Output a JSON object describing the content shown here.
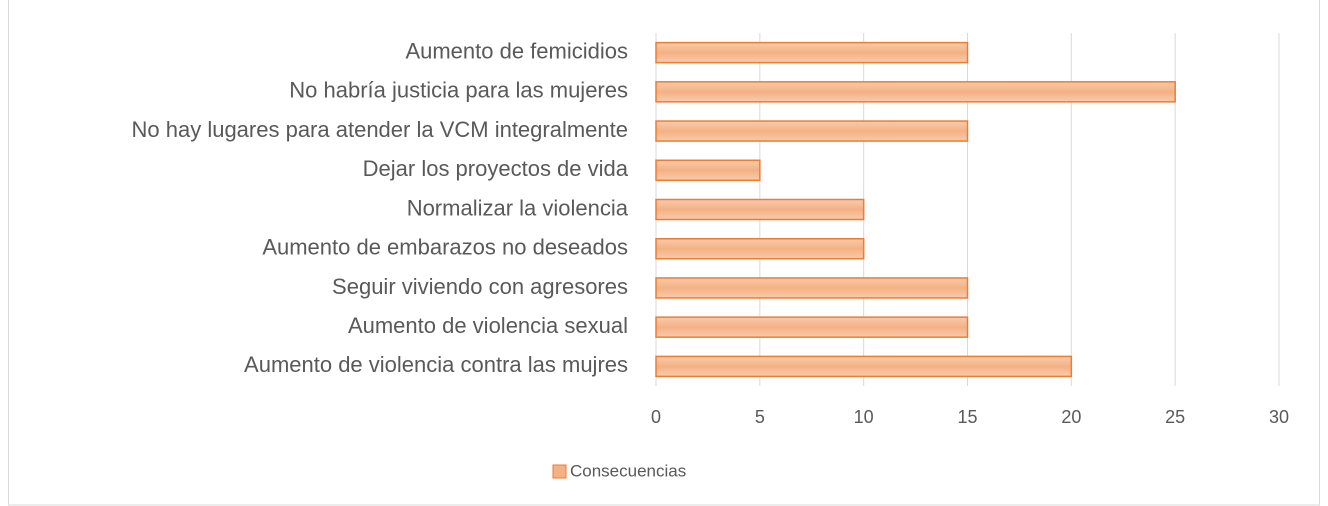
{
  "chart_data": {
    "type": "hbar",
    "categories": [
      "Aumento de femicidios",
      "No habría justicia para las mujeres",
      "No hay lugares para atender la VCM integralmente",
      "Dejar los proyectos de vida",
      "Normalizar la violencia",
      "Aumento de embarazos no deseados",
      "Seguir viviendo con agresores",
      "Aumento de violencia sexual",
      "Aumento de violencia contra las mujres"
    ],
    "series": [
      {
        "name": "Consecuencias",
        "color": "#f4b183",
        "values": [
          15,
          25,
          15,
          5,
          10,
          10,
          15,
          15,
          20
        ]
      }
    ],
    "xlim": [
      0,
      30
    ],
    "xticks": [
      0,
      5,
      10,
      15,
      20,
      25,
      30
    ],
    "grid": true,
    "legend": "bottom"
  }
}
